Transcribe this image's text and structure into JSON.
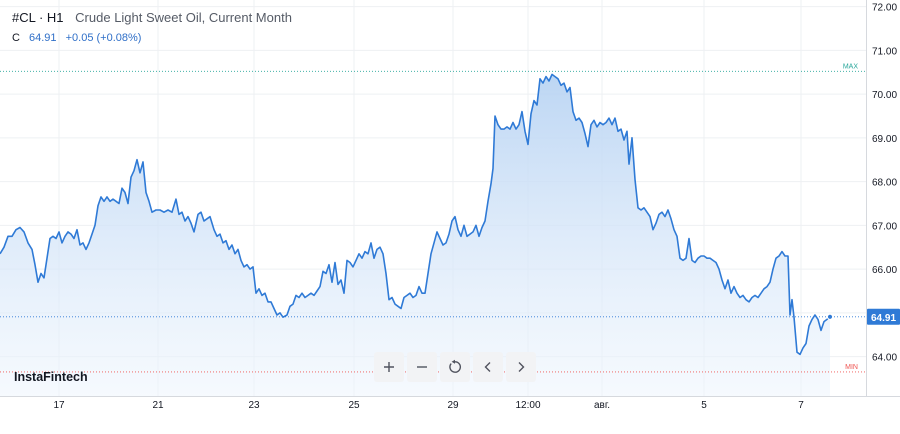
{
  "legend": {
    "symbol": "#CL · H1",
    "description": "Crude Light Sweet Oil, Current Month",
    "c_label": "C",
    "price": "64.91",
    "change": "+0.05 (+0.08%)"
  },
  "logo": {
    "text": "InstaFintech"
  },
  "toolbar": {
    "buttons": [
      {
        "name": "zoom-in",
        "icon": "plus-icon"
      },
      {
        "name": "zoom-out",
        "icon": "minus-icon"
      },
      {
        "name": "reset",
        "icon": "refresh-icon"
      },
      {
        "name": "scroll-left",
        "icon": "chevron-left-icon"
      },
      {
        "name": "scroll-right",
        "icon": "chevron-right-icon"
      }
    ]
  },
  "colors": {
    "line": "#2f7ad6",
    "area_top": "#b9d4f3",
    "area_bottom": "#eef5fd",
    "max": "#26a69a",
    "min": "#ef5350",
    "badge": "#2f7ad6",
    "grid": "#eef0f3"
  },
  "chart_data": {
    "type": "area",
    "symbol": "#CL",
    "timeframe": "H1",
    "ylim": [
      63.1,
      72.15
    ],
    "yticks": [
      64.0,
      65.0,
      66.0,
      67.0,
      68.0,
      69.0,
      70.0,
      71.0,
      72.0
    ],
    "ytick_labels": [
      "64.00",
      "65.00",
      "66.00",
      "67.00",
      "68.00",
      "69.00",
      "70.00",
      "71.00",
      "72.00"
    ],
    "xticks": [
      {
        "label": "17",
        "i": 59
      },
      {
        "label": "21",
        "i": 158
      },
      {
        "label": "23",
        "i": 254
      },
      {
        "label": "25",
        "i": 354
      },
      {
        "label": "29",
        "i": 453
      },
      {
        "label": "12:00",
        "i": 528
      },
      {
        "label": "авг.",
        "i": 602
      },
      {
        "label": "5",
        "i": 704
      },
      {
        "label": "7",
        "i": 801
      }
    ],
    "max": {
      "label": "MAX",
      "value": 70.52
    },
    "min": {
      "label": "MIN",
      "value": 63.65
    },
    "last": {
      "label": "64.91",
      "value": 64.91
    },
    "series": [
      {
        "points": [
          [
            0,
            66.35
          ],
          [
            4,
            66.5
          ],
          [
            8,
            66.75
          ],
          [
            12,
            66.75
          ],
          [
            16,
            66.9
          ],
          [
            20,
            66.95
          ],
          [
            24,
            66.85
          ],
          [
            28,
            66.6
          ],
          [
            32,
            66.45
          ],
          [
            35,
            66.1
          ],
          [
            38,
            65.7
          ],
          [
            41,
            65.9
          ],
          [
            44,
            65.8
          ],
          [
            47,
            66.25
          ],
          [
            50,
            66.7
          ],
          [
            53,
            66.75
          ],
          [
            56,
            66.7
          ],
          [
            59,
            66.85
          ],
          [
            62,
            66.6
          ],
          [
            65,
            66.75
          ],
          [
            68,
            66.85
          ],
          [
            71,
            66.8
          ],
          [
            74,
            66.7
          ],
          [
            77,
            66.9
          ],
          [
            80,
            66.55
          ],
          [
            83,
            66.6
          ],
          [
            86,
            66.45
          ],
          [
            89,
            66.6
          ],
          [
            92,
            66.8
          ],
          [
            95,
            67.0
          ],
          [
            98,
            67.45
          ],
          [
            101,
            67.65
          ],
          [
            104,
            67.55
          ],
          [
            107,
            67.65
          ],
          [
            110,
            67.55
          ],
          [
            113,
            67.6
          ],
          [
            116,
            67.55
          ],
          [
            119,
            67.5
          ],
          [
            122,
            67.85
          ],
          [
            125,
            67.75
          ],
          [
            128,
            67.5
          ],
          [
            131,
            68.1
          ],
          [
            134,
            68.25
          ],
          [
            137,
            68.5
          ],
          [
            140,
            68.2
          ],
          [
            143,
            68.45
          ],
          [
            146,
            67.75
          ],
          [
            149,
            67.55
          ],
          [
            152,
            67.3
          ],
          [
            156,
            67.35
          ],
          [
            160,
            67.35
          ],
          [
            164,
            67.3
          ],
          [
            168,
            67.35
          ],
          [
            172,
            67.3
          ],
          [
            176,
            67.6
          ],
          [
            179,
            67.25
          ],
          [
            182,
            67.3
          ],
          [
            185,
            67.1
          ],
          [
            188,
            67.2
          ],
          [
            191,
            67.05
          ],
          [
            194,
            66.85
          ],
          [
            198,
            67.25
          ],
          [
            201,
            67.3
          ],
          [
            204,
            67.1
          ],
          [
            207,
            67.15
          ],
          [
            210,
            67.2
          ],
          [
            214,
            66.9
          ],
          [
            217,
            66.75
          ],
          [
            220,
            66.8
          ],
          [
            223,
            66.6
          ],
          [
            226,
            66.65
          ],
          [
            229,
            66.45
          ],
          [
            232,
            66.55
          ],
          [
            235,
            66.35
          ],
          [
            238,
            66.45
          ],
          [
            241,
            66.2
          ],
          [
            244,
            66.05
          ],
          [
            247,
            66.1
          ],
          [
            250,
            66.0
          ],
          [
            253,
            66.05
          ],
          [
            256,
            65.45
          ],
          [
            259,
            65.55
          ],
          [
            262,
            65.4
          ],
          [
            265,
            65.45
          ],
          [
            268,
            65.25
          ],
          [
            271,
            65.25
          ],
          [
            274,
            65.1
          ],
          [
            277,
            64.95
          ],
          [
            280,
            65.0
          ],
          [
            283,
            64.9
          ],
          [
            287,
            64.95
          ],
          [
            290,
            65.15
          ],
          [
            293,
            65.2
          ],
          [
            296,
            65.4
          ],
          [
            299,
            65.35
          ],
          [
            302,
            65.45
          ],
          [
            305,
            65.35
          ],
          [
            308,
            65.4
          ],
          [
            311,
            65.45
          ],
          [
            314,
            65.4
          ],
          [
            317,
            65.5
          ],
          [
            320,
            65.6
          ],
          [
            323,
            65.95
          ],
          [
            326,
            65.9
          ],
          [
            329,
            66.1
          ],
          [
            332,
            65.7
          ],
          [
            335,
            66.15
          ],
          [
            338,
            65.65
          ],
          [
            341,
            65.75
          ],
          [
            344,
            65.45
          ],
          [
            347,
            66.2
          ],
          [
            350,
            66.15
          ],
          [
            353,
            66.05
          ],
          [
            356,
            66.2
          ],
          [
            359,
            66.35
          ],
          [
            362,
            66.25
          ],
          [
            365,
            66.4
          ],
          [
            368,
            66.35
          ],
          [
            371,
            66.6
          ],
          [
            374,
            66.25
          ],
          [
            377,
            66.45
          ],
          [
            380,
            66.5
          ],
          [
            383,
            66.35
          ],
          [
            386,
            65.9
          ],
          [
            389,
            65.3
          ],
          [
            392,
            65.35
          ],
          [
            395,
            65.2
          ],
          [
            398,
            65.15
          ],
          [
            401,
            65.1
          ],
          [
            404,
            65.35
          ],
          [
            407,
            65.4
          ],
          [
            410,
            65.45
          ],
          [
            413,
            65.35
          ],
          [
            416,
            65.4
          ],
          [
            419,
            65.6
          ],
          [
            422,
            65.45
          ],
          [
            425,
            65.45
          ],
          [
            428,
            65.9
          ],
          [
            431,
            66.35
          ],
          [
            434,
            66.6
          ],
          [
            437,
            66.85
          ],
          [
            440,
            66.7
          ],
          [
            443,
            66.55
          ],
          [
            446,
            66.6
          ],
          [
            449,
            66.8
          ],
          [
            452,
            67.1
          ],
          [
            455,
            67.2
          ],
          [
            458,
            66.9
          ],
          [
            461,
            66.75
          ],
          [
            464,
            67.0
          ],
          [
            467,
            66.75
          ],
          [
            470,
            66.8
          ],
          [
            473,
            66.85
          ],
          [
            476,
            67.0
          ],
          [
            479,
            66.75
          ],
          [
            482,
            66.95
          ],
          [
            485,
            67.1
          ],
          [
            488,
            67.55
          ],
          [
            491,
            67.95
          ],
          [
            493,
            68.3
          ],
          [
            495,
            69.5
          ],
          [
            498,
            69.3
          ],
          [
            501,
            69.2
          ],
          [
            504,
            69.2
          ],
          [
            507,
            69.25
          ],
          [
            510,
            69.2
          ],
          [
            513,
            69.35
          ],
          [
            516,
            69.2
          ],
          [
            519,
            69.3
          ],
          [
            522,
            69.6
          ],
          [
            525,
            69.15
          ],
          [
            528,
            68.85
          ],
          [
            531,
            69.55
          ],
          [
            534,
            69.85
          ],
          [
            537,
            69.75
          ],
          [
            540,
            70.35
          ],
          [
            543,
            70.25
          ],
          [
            546,
            70.4
          ],
          [
            549,
            70.3
          ],
          [
            552,
            70.45
          ],
          [
            555,
            70.4
          ],
          [
            558,
            70.35
          ],
          [
            561,
            70.2
          ],
          [
            564,
            70.25
          ],
          [
            567,
            70.05
          ],
          [
            570,
            70.15
          ],
          [
            573,
            69.6
          ],
          [
            576,
            69.4
          ],
          [
            579,
            69.45
          ],
          [
            582,
            69.35
          ],
          [
            585,
            69.1
          ],
          [
            588,
            68.8
          ],
          [
            591,
            69.3
          ],
          [
            594,
            69.4
          ],
          [
            597,
            69.25
          ],
          [
            600,
            69.35
          ],
          [
            603,
            69.3
          ],
          [
            606,
            69.35
          ],
          [
            609,
            69.45
          ],
          [
            612,
            69.3
          ],
          [
            615,
            69.45
          ],
          [
            618,
            69.15
          ],
          [
            621,
            69.2
          ],
          [
            624,
            68.95
          ],
          [
            627,
            69.15
          ],
          [
            629,
            68.4
          ],
          [
            632,
            69.0
          ],
          [
            635,
            68.05
          ],
          [
            638,
            67.4
          ],
          [
            641,
            67.35
          ],
          [
            644,
            67.4
          ],
          [
            647,
            67.3
          ],
          [
            650,
            67.2
          ],
          [
            653,
            66.9
          ],
          [
            656,
            67.05
          ],
          [
            659,
            67.25
          ],
          [
            662,
            67.3
          ],
          [
            665,
            67.2
          ],
          [
            668,
            67.35
          ],
          [
            671,
            67.15
          ],
          [
            674,
            66.9
          ],
          [
            677,
            66.75
          ],
          [
            680,
            66.25
          ],
          [
            683,
            66.2
          ],
          [
            686,
            66.25
          ],
          [
            689,
            66.7
          ],
          [
            692,
            66.2
          ],
          [
            695,
            66.15
          ],
          [
            698,
            66.25
          ],
          [
            701,
            66.3
          ],
          [
            704,
            66.3
          ],
          [
            707,
            66.25
          ],
          [
            710,
            66.25
          ],
          [
            713,
            66.2
          ],
          [
            716,
            66.15
          ],
          [
            719,
            66.0
          ],
          [
            722,
            65.75
          ],
          [
            725,
            65.55
          ],
          [
            728,
            65.75
          ],
          [
            731,
            65.45
          ],
          [
            734,
            65.6
          ],
          [
            737,
            65.45
          ],
          [
            740,
            65.35
          ],
          [
            743,
            65.4
          ],
          [
            746,
            65.3
          ],
          [
            749,
            65.25
          ],
          [
            752,
            65.35
          ],
          [
            755,
            65.4
          ],
          [
            758,
            65.35
          ],
          [
            761,
            65.45
          ],
          [
            764,
            65.55
          ],
          [
            767,
            65.6
          ],
          [
            770,
            65.7
          ],
          [
            773,
            66.0
          ],
          [
            776,
            66.25
          ],
          [
            779,
            66.3
          ],
          [
            782,
            66.4
          ],
          [
            785,
            66.3
          ],
          [
            788,
            66.3
          ],
          [
            790,
            64.95
          ],
          [
            792,
            65.3
          ],
          [
            794,
            64.9
          ],
          [
            797,
            64.1
          ],
          [
            800,
            64.05
          ],
          [
            803,
            64.2
          ],
          [
            806,
            64.3
          ],
          [
            809,
            64.7
          ],
          [
            812,
            64.85
          ],
          [
            815,
            64.95
          ],
          [
            818,
            64.85
          ],
          [
            821,
            64.6
          ],
          [
            824,
            64.8
          ],
          [
            827,
            64.85
          ],
          [
            830,
            64.91
          ]
        ]
      }
    ]
  }
}
